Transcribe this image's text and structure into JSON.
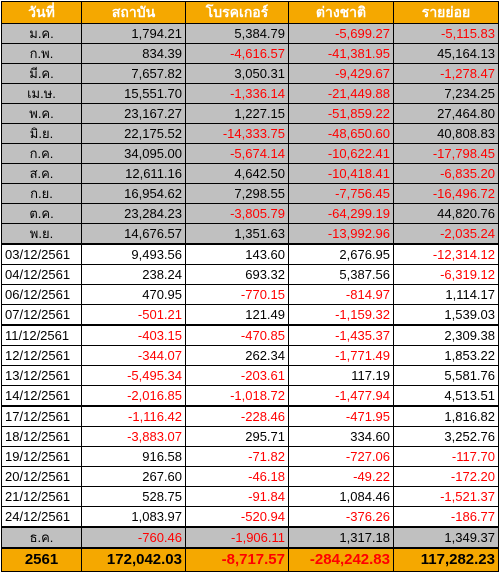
{
  "headers": [
    "วันที่",
    "สถาบัน",
    "โบรคเกอร์",
    "ต่างชาติ",
    "รายย่อย"
  ],
  "monthly_rows": [
    {
      "label": "ม.ค.",
      "values": [
        "1,794.21",
        "5,384.79",
        "-5,699.27",
        "-5,115.83"
      ]
    },
    {
      "label": "ก.พ.",
      "values": [
        "834.39",
        "-4,616.57",
        "-41,381.95",
        "45,164.13"
      ]
    },
    {
      "label": "มี.ค.",
      "values": [
        "7,657.82",
        "3,050.31",
        "-9,429.67",
        "-1,278.47"
      ]
    },
    {
      "label": "เม.ษ.",
      "values": [
        "15,551.70",
        "-1,336.14",
        "-21,449.88",
        "7,234.25"
      ]
    },
    {
      "label": "พ.ค.",
      "values": [
        "23,167.27",
        "1,227.15",
        "-51,859.22",
        "27,464.80"
      ]
    },
    {
      "label": "มิ.ย.",
      "values": [
        "22,175.52",
        "-14,333.75",
        "-48,650.60",
        "40,808.83"
      ]
    },
    {
      "label": "ก.ค.",
      "values": [
        "34,095.00",
        "-5,674.14",
        "-10,622.41",
        "-17,798.45"
      ]
    },
    {
      "label": "ส.ค.",
      "values": [
        "12,611.16",
        "4,642.50",
        "-10,418.41",
        "-6,835.20"
      ]
    },
    {
      "label": "ก.ย.",
      "values": [
        "16,954.62",
        "7,298.55",
        "-7,756.45",
        "-16,496.72"
      ]
    },
    {
      "label": "ต.ค.",
      "values": [
        "23,284.23",
        "-3,805.79",
        "-64,299.19",
        "44,820.76"
      ]
    },
    {
      "label": "พ.ย.",
      "values": [
        "14,676.57",
        "1,351.63",
        "-13,992.96",
        "-2,035.24"
      ]
    }
  ],
  "daily_rows": [
    {
      "label": "03/12/2561",
      "values": [
        "9,493.56",
        "143.60",
        "2,676.95",
        "-12,314.12"
      ]
    },
    {
      "label": "04/12/2561",
      "values": [
        "238.24",
        "693.32",
        "5,387.56",
        "-6,319.12"
      ]
    },
    {
      "label": "06/12/2561",
      "values": [
        "470.95",
        "-770.15",
        "-814.97",
        "1,114.17"
      ]
    },
    {
      "label": "07/12/2561",
      "values": [
        "-501.21",
        "121.49",
        "-1,159.32",
        "1,539.03"
      ]
    },
    {
      "label": "11/12/2561",
      "values": [
        "-403.15",
        "-470.85",
        "-1,435.37",
        "2,309.38"
      ]
    },
    {
      "label": "12/12/2561",
      "values": [
        "-344.07",
        "262.34",
        "-1,771.49",
        "1,853.22"
      ]
    },
    {
      "label": "13/12/2561",
      "values": [
        "-5,495.34",
        "-203.61",
        "117.19",
        "5,581.76"
      ]
    },
    {
      "label": "14/12/2561",
      "values": [
        "-2,016.85",
        "-1,018.72",
        "-1,477.94",
        "4,513.51"
      ]
    },
    {
      "label": "17/12/2561",
      "values": [
        "-1,116.42",
        "-228.46",
        "-471.95",
        "1,816.82"
      ]
    },
    {
      "label": "18/12/2561",
      "values": [
        "-3,883.07",
        "295.71",
        "334.60",
        "3,252.76"
      ]
    },
    {
      "label": "19/12/2561",
      "values": [
        "916.58",
        "-71.82",
        "-727.06",
        "-117.70"
      ]
    },
    {
      "label": "20/12/2561",
      "values": [
        "267.60",
        "-46.18",
        "-49.22",
        "-172.20"
      ]
    },
    {
      "label": "21/12/2561",
      "values": [
        "528.75",
        "-91.84",
        "1,084.46",
        "-1,521.37"
      ]
    },
    {
      "label": "24/12/2561",
      "values": [
        "1,083.97",
        "-520.94",
        "-376.26",
        "-186.77"
      ]
    }
  ],
  "subtotal_row": {
    "label": "ธ.ค.",
    "values": [
      "-760.46",
      "-1,906.11",
      "1,317.18",
      "1,349.37"
    ]
  },
  "grand_total_row": {
    "label": "2561",
    "values": [
      "172,042.03",
      "-8,717.57",
      "-284,242.83",
      "117,282.23"
    ]
  },
  "colors": {
    "header_bg": "#f5a800",
    "header_text": "#ffffff",
    "monthly_row_bg": "#c0c0c0",
    "negative_text": "#ff0000",
    "grand_total_bg": "#f5a800"
  }
}
